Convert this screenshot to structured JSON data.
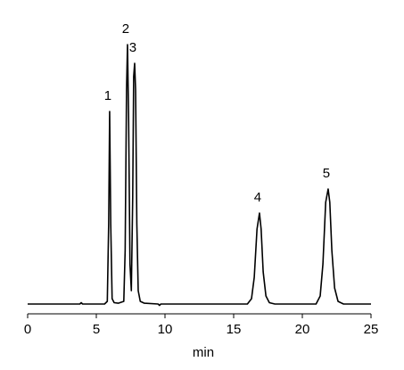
{
  "chart_data": {
    "type": "line",
    "xlabel": "min",
    "xlim": [
      0,
      25
    ],
    "xticks": [
      0,
      5,
      10,
      15,
      20,
      25
    ],
    "ylim": [
      0,
      100
    ],
    "x": [
      0,
      3.8,
      3.9,
      4.0,
      5.6,
      5.8,
      5.9,
      5.97,
      6.05,
      6.15,
      6.3,
      6.6,
      7.0,
      7.1,
      7.2,
      7.27,
      7.35,
      7.45,
      7.55,
      7.65,
      7.72,
      7.79,
      7.86,
      7.95,
      8.05,
      8.2,
      8.5,
      9.5,
      9.6,
      9.7,
      16.0,
      16.3,
      16.5,
      16.7,
      16.88,
      17.0,
      17.15,
      17.35,
      17.6,
      18.0,
      21.0,
      21.3,
      21.5,
      21.7,
      21.88,
      22.0,
      22.15,
      22.35,
      22.6,
      23.0,
      25.0
    ],
    "series": [
      {
        "color": "#000000",
        "values": [
          0,
          0,
          0.5,
          0,
          0,
          1,
          30,
          72,
          30,
          2,
          0.5,
          0.3,
          1,
          20,
          80,
          97,
          70,
          15,
          5,
          40,
          85,
          90,
          80,
          30,
          5,
          1,
          0.3,
          0,
          -0.5,
          0,
          0,
          2,
          10,
          28,
          34,
          28,
          12,
          3,
          0.5,
          0,
          0,
          3,
          15,
          38,
          43,
          38,
          20,
          6,
          1,
          0,
          0
        ]
      }
    ],
    "annotations": [
      {
        "text": "1",
        "x": 5.97
      },
      {
        "text": "2",
        "x": 7.27
      },
      {
        "text": "3",
        "x": 7.79
      },
      {
        "text": "4",
        "x": 16.88
      },
      {
        "text": "5",
        "x": 21.88
      }
    ]
  }
}
